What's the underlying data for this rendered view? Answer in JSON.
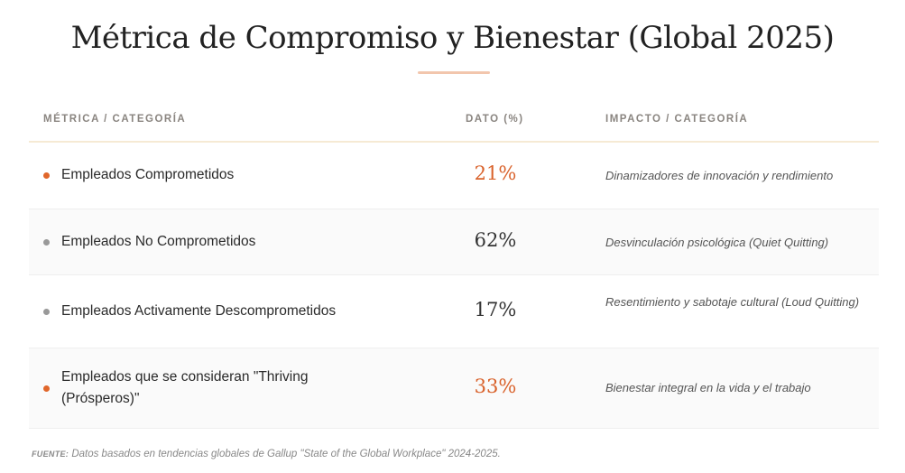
{
  "title": "Métrica de Compromiso y Bienestar (Global 2025)",
  "headers": {
    "metric": "MÉTRICA / CATEGORÍA",
    "value": "DATO (%)",
    "impact": "IMPACTO / CATEGORÍA"
  },
  "rows": [
    {
      "metric": "Empleados Comprometidos",
      "value": "21%",
      "impact": "Dinamizadores de innovación y rendimiento",
      "color": "#d9622b"
    },
    {
      "metric": "Empleados No Comprometidos",
      "value": "62%",
      "impact": "Desvinculación psicológica (Quiet Quitting)",
      "color": "#333333"
    },
    {
      "metric": "Empleados Activamente Descomprometidos",
      "value": "17%",
      "impact": "Resentimiento y sabotaje cultural (Loud Quitting)",
      "color": "#333333"
    },
    {
      "metric": "Empleados que se consideran \"Thriving (Prósperos)\"",
      "value": "33%",
      "impact": "Bienestar integral en la vida y el trabajo",
      "color": "#d9622b"
    }
  ],
  "source": {
    "label": "FUENTE:",
    "text": "Datos basados en tendencias globales de Gallup \"State of the Global Workplace\" 2024-2025."
  }
}
